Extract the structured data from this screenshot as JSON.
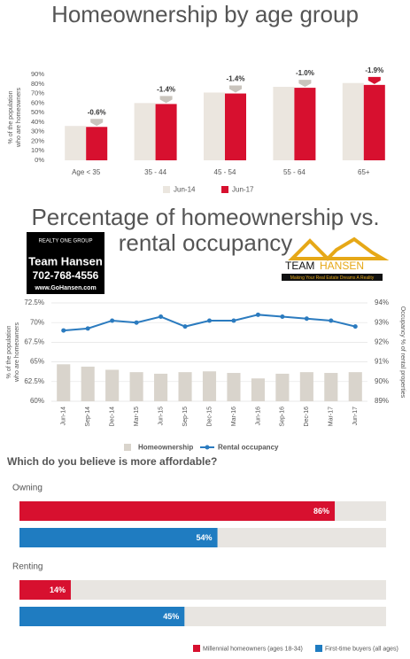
{
  "chart_data": [
    {
      "type": "bar",
      "title": "Homeownership by age group",
      "ylabel": [
        "% of the population",
        "who are homeowners"
      ],
      "categories": [
        "Age < 35",
        "35 - 44",
        "45 - 54",
        "55 - 64",
        "65+"
      ],
      "series": [
        {
          "name": "Jun-14",
          "color": "#ebe6df",
          "values": [
            36,
            60,
            71,
            77,
            81
          ]
        },
        {
          "name": "Jun-17",
          "color": "#d7102f",
          "values": [
            35,
            59,
            70,
            76,
            79
          ]
        }
      ],
      "annotations": [
        "-0.6%",
        "-1.4%",
        "-1.4%",
        "-1.0%",
        "-1.9%"
      ],
      "ylim": [
        0,
        90
      ],
      "yticks": [
        {
          "value": 0,
          "label": "0%"
        },
        {
          "value": 10,
          "label": "10%"
        },
        {
          "value": 20,
          "label": "20%"
        },
        {
          "value": 30,
          "label": "30%"
        },
        {
          "value": 40,
          "label": "40%"
        },
        {
          "value": 50,
          "label": "50%"
        },
        {
          "value": 60,
          "label": "60%"
        },
        {
          "value": 70,
          "label": "70%"
        },
        {
          "value": 80,
          "label": "80%"
        },
        {
          "value": 90,
          "label": "90%"
        }
      ],
      "grid": false
    },
    {
      "type": "bar_line",
      "title": "Percentage of homeownership vs. rental occupancy",
      "ylabel": [
        "% of the population",
        "who are homeowners"
      ],
      "y2label": "Occupancy % of rental properties",
      "categories": [
        "Jun-14",
        "Sep-14",
        "Dec-14",
        "Mar-15",
        "Jun-15",
        "Sep-15",
        "Dec-15",
        "Mar-16",
        "Jun-16",
        "Sep-16",
        "Dec-16",
        "Mar-17",
        "Jun-17"
      ],
      "series": [
        {
          "name": "Homeownership",
          "color": "#d9d4cc",
          "values": [
            64.7,
            64.4,
            64.0,
            63.7,
            63.5,
            63.7,
            63.8,
            63.6,
            62.9,
            63.5,
            63.7,
            63.6,
            63.7
          ]
        },
        {
          "name": "Rental occupancy",
          "color": "#2b7bbf",
          "axis": "y2",
          "values": [
            92.6,
            92.7,
            93.1,
            93.0,
            93.3,
            92.8,
            93.1,
            93.1,
            93.4,
            93.3,
            93.2,
            93.1,
            92.8
          ]
        }
      ],
      "ylim": [
        60,
        72.5
      ],
      "yticks": [
        {
          "value": 60,
          "label": "60%"
        },
        {
          "value": 62.5,
          "label": "62.5%"
        },
        {
          "value": 65,
          "label": "65%"
        },
        {
          "value": 67.5,
          "label": "67.5%"
        },
        {
          "value": 70,
          "label": "70%"
        },
        {
          "value": 72.5,
          "label": "72.5%"
        }
      ],
      "y2lim": [
        89,
        94
      ],
      "y2ticks": [
        {
          "value": 89,
          "label": "89%"
        },
        {
          "value": 90,
          "label": "90%"
        },
        {
          "value": 91,
          "label": "91%"
        },
        {
          "value": 92,
          "label": "92%"
        },
        {
          "value": 93,
          "label": "93%"
        },
        {
          "value": 94,
          "label": "94%"
        }
      ],
      "grid": true
    },
    {
      "type": "hbar",
      "title": "Which do you believe is more affordable?",
      "categories": [
        "Owning",
        "Renting"
      ],
      "series": [
        {
          "name": "Millennial homeowners (ages 18-34)",
          "color": "#d7102f",
          "values": [
            86,
            14
          ],
          "value_labels": [
            "86%",
            "14%"
          ]
        },
        {
          "name": "First-time buyers (all ages)",
          "color": "#1f7cc1",
          "values": [
            54,
            45
          ],
          "value_labels": [
            "54%",
            "45%"
          ]
        }
      ],
      "xlim": [
        0,
        100
      ]
    }
  ],
  "logos": {
    "left": {
      "brand": "REALTY ONE GROUP",
      "team": "Team Hansen",
      "phone": "702-768-4556",
      "web": "www.GoHansen.com"
    },
    "right": {
      "word1": "TEAM",
      "word2": "HANSEN",
      "tagline": "Making Your Real Estate Dreams A Reality"
    }
  }
}
